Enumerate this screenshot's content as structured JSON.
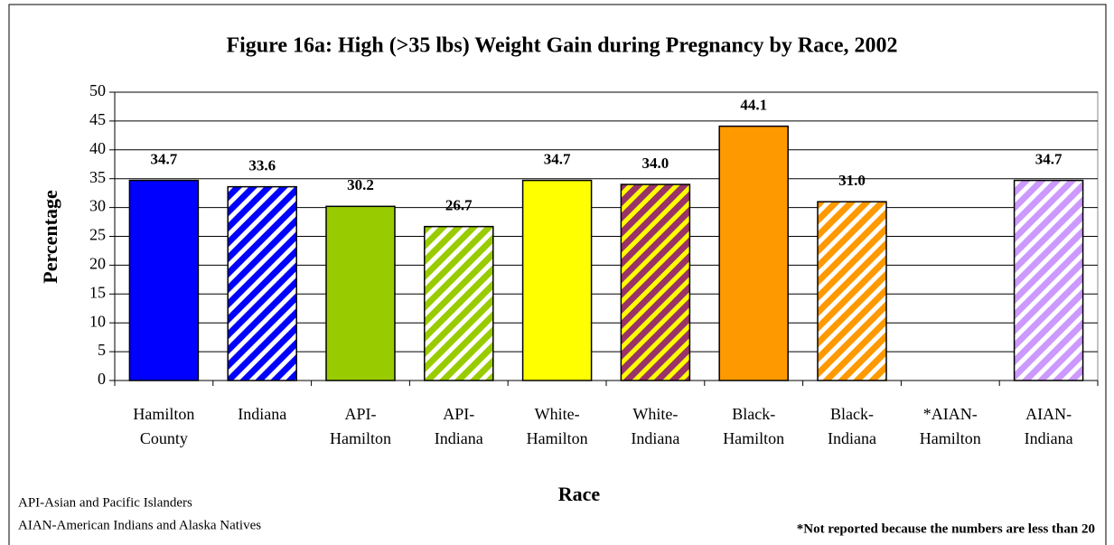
{
  "chart_data": {
    "type": "bar",
    "title": "Figure 16a:  High (>35 lbs) Weight Gain during Pregnancy by Race, 2002",
    "y_label": "Percentage",
    "x_label": "Race",
    "categories": [
      [
        "Hamilton",
        "County"
      ],
      [
        "Indiana"
      ],
      [
        "API-",
        "Hamilton"
      ],
      [
        "API-",
        "Indiana"
      ],
      [
        "White-",
        "Hamilton"
      ],
      [
        "White-",
        "Indiana"
      ],
      [
        "Black-",
        "Hamilton"
      ],
      [
        "Black-",
        "Indiana"
      ],
      [
        "*AIAN-",
        "Hamilton"
      ],
      [
        "AIAN-",
        "Indiana"
      ]
    ],
    "values": [
      34.7,
      33.6,
      30.2,
      26.7,
      34.7,
      34.0,
      44.1,
      31.0,
      null,
      34.7
    ],
    "value_labels": [
      "34.7",
      "33.6",
      "30.2",
      "26.7",
      "34.7",
      "34.0",
      "44.1",
      "31.0",
      null,
      "34.7"
    ],
    "colors": [
      "#0000ff",
      "#0000ff",
      "#99cc00",
      "#99cc00",
      "#ffff00",
      "#993366",
      "#ff9900",
      "#ff9900",
      null,
      "#cc99ff"
    ],
    "stripe_colors": [
      null,
      "#ffffff",
      null,
      "#ffffff",
      null,
      "#ffff00",
      null,
      "#ffffff",
      null,
      "#ffffff"
    ],
    "ylim": [
      0,
      50
    ],
    "yticks": [
      0,
      5,
      10,
      15,
      20,
      25,
      30,
      35,
      40,
      45,
      50
    ],
    "grid": true,
    "notes": [
      "API-Asian and Pacific Islanders",
      "AIAN-American Indians and Alaska Natives"
    ],
    "footnote": "*Not reported because the numbers are less than 20"
  }
}
